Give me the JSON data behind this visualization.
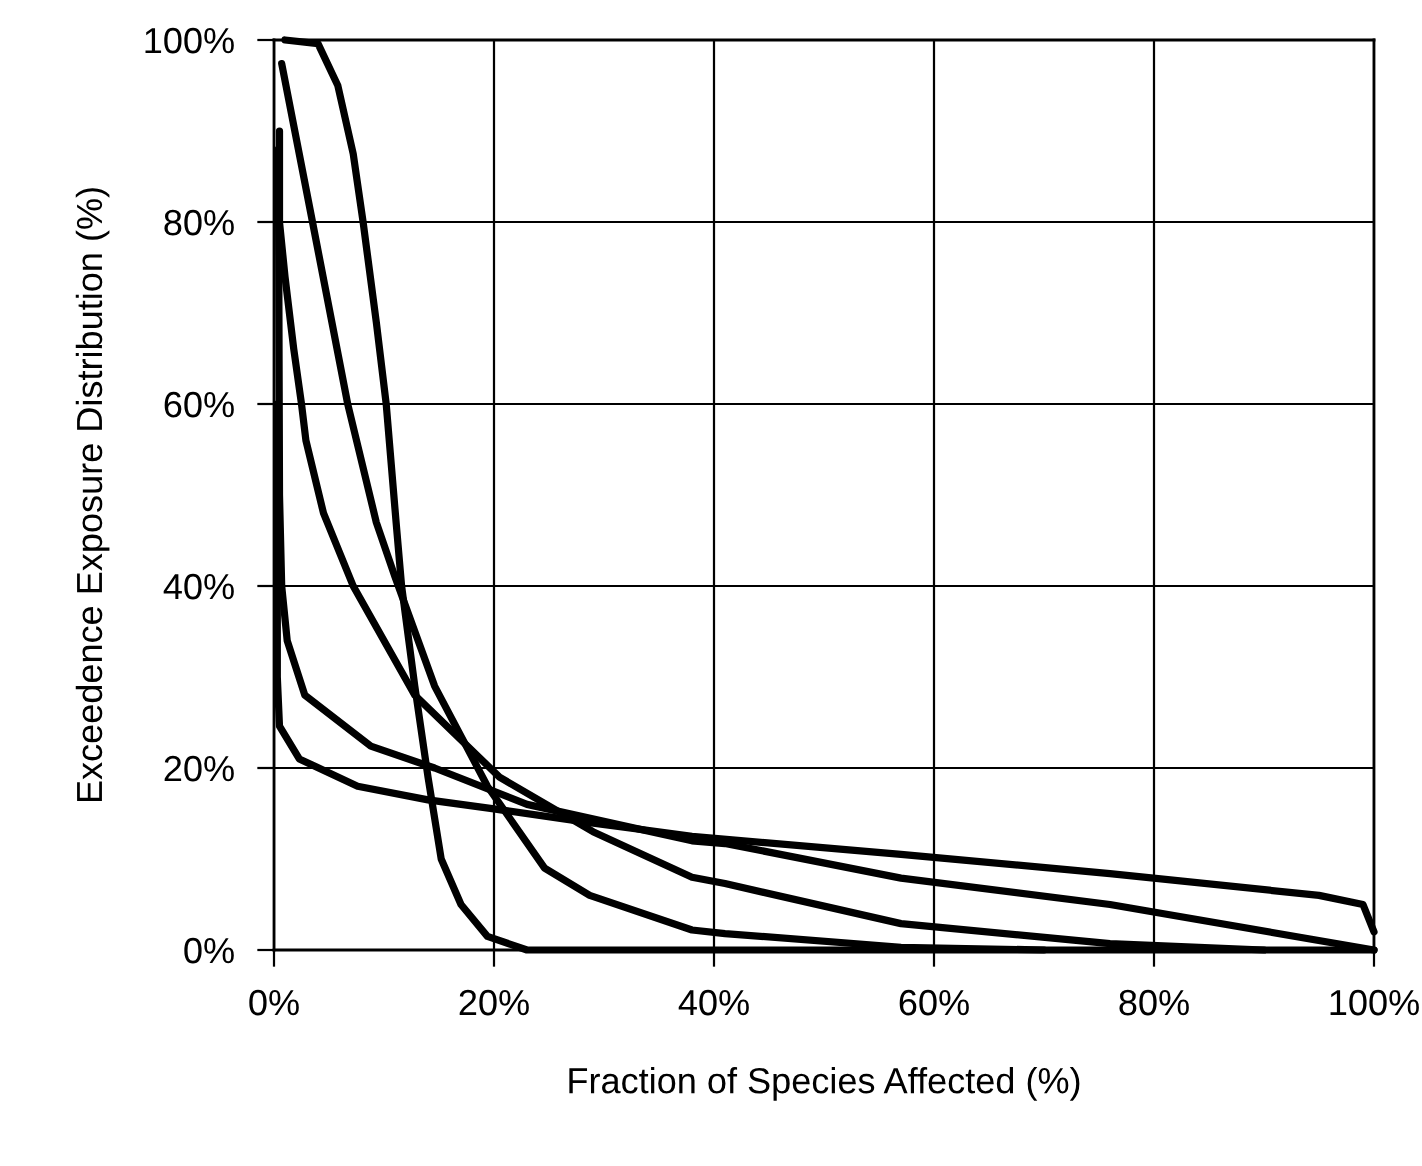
{
  "chart_data": {
    "type": "line",
    "xlabel": "Fraction of Species Affected (%)",
    "ylabel": "Exceedence Exposure Distribution (%)",
    "xlim": [
      0,
      100
    ],
    "ylim": [
      0,
      100
    ],
    "xticks": [
      {
        "value": 0,
        "label": "0%"
      },
      {
        "value": 20,
        "label": "20%"
      },
      {
        "value": 40,
        "label": "40%"
      },
      {
        "value": 60,
        "label": "60%"
      },
      {
        "value": 80,
        "label": "80%"
      },
      {
        "value": 100,
        "label": "100%"
      }
    ],
    "yticks": [
      {
        "value": 0,
        "label": "0%"
      },
      {
        "value": 20,
        "label": "20%"
      },
      {
        "value": 40,
        "label": "40%"
      },
      {
        "value": 60,
        "label": "60%"
      },
      {
        "value": 80,
        "label": "80%"
      },
      {
        "value": 100,
        "label": "100%"
      }
    ],
    "grid": true,
    "marker": "none",
    "line_style": "solid",
    "series": [
      {
        "color": "#000000",
        "x": [
          1,
          4,
          5.8,
          7.2,
          8.1,
          9.3,
          10.2,
          11.1,
          11.6,
          12.8,
          14,
          15.2,
          17,
          19.4,
          23,
          40,
          100
        ],
        "values": [
          100,
          99.6,
          95,
          87.5,
          80,
          69,
          60,
          47,
          40,
          29,
          19,
          10,
          5,
          1.5,
          0,
          0,
          0
        ]
      },
      {
        "color": "#000000",
        "x": [
          0.7,
          3.5,
          6.7,
          9.3,
          11,
          14.6,
          19.4,
          24.6,
          28.7,
          38,
          41,
          57,
          70
        ],
        "values": [
          97.4,
          80,
          60,
          47,
          41,
          29,
          18,
          9,
          6,
          2.2,
          1.8,
          0.3,
          0
        ]
      },
      {
        "color": "#000000",
        "x": [
          0.5,
          0.5,
          1,
          1.8,
          2.5,
          2.9,
          4.5,
          7.2,
          12.8,
          20.5,
          29,
          38,
          41,
          57,
          76,
          90
        ],
        "values": [
          90,
          80,
          74,
          66,
          60,
          56,
          48,
          40,
          28,
          19,
          13,
          8,
          7.3,
          2.9,
          0.7,
          0
        ]
      },
      {
        "color": "#000000",
        "x": [
          0.4,
          0.5,
          0.7,
          1.2,
          2.8,
          8.8,
          14.6,
          23,
          38,
          41,
          57,
          76,
          100
        ],
        "values": [
          88,
          50,
          40,
          34,
          28,
          22.4,
          20,
          16,
          12,
          11.7,
          7.9,
          5,
          0
        ]
      },
      {
        "color": "#000000",
        "x": [
          0.3,
          0.3,
          0.5,
          2.3,
          7.6,
          14,
          20,
          28.7,
          38,
          57,
          76,
          95,
          99,
          100
        ],
        "values": [
          60,
          30,
          24.6,
          21,
          18,
          16.5,
          15.5,
          14,
          12.5,
          10.5,
          8.4,
          6,
          5,
          2
        ]
      }
    ]
  }
}
